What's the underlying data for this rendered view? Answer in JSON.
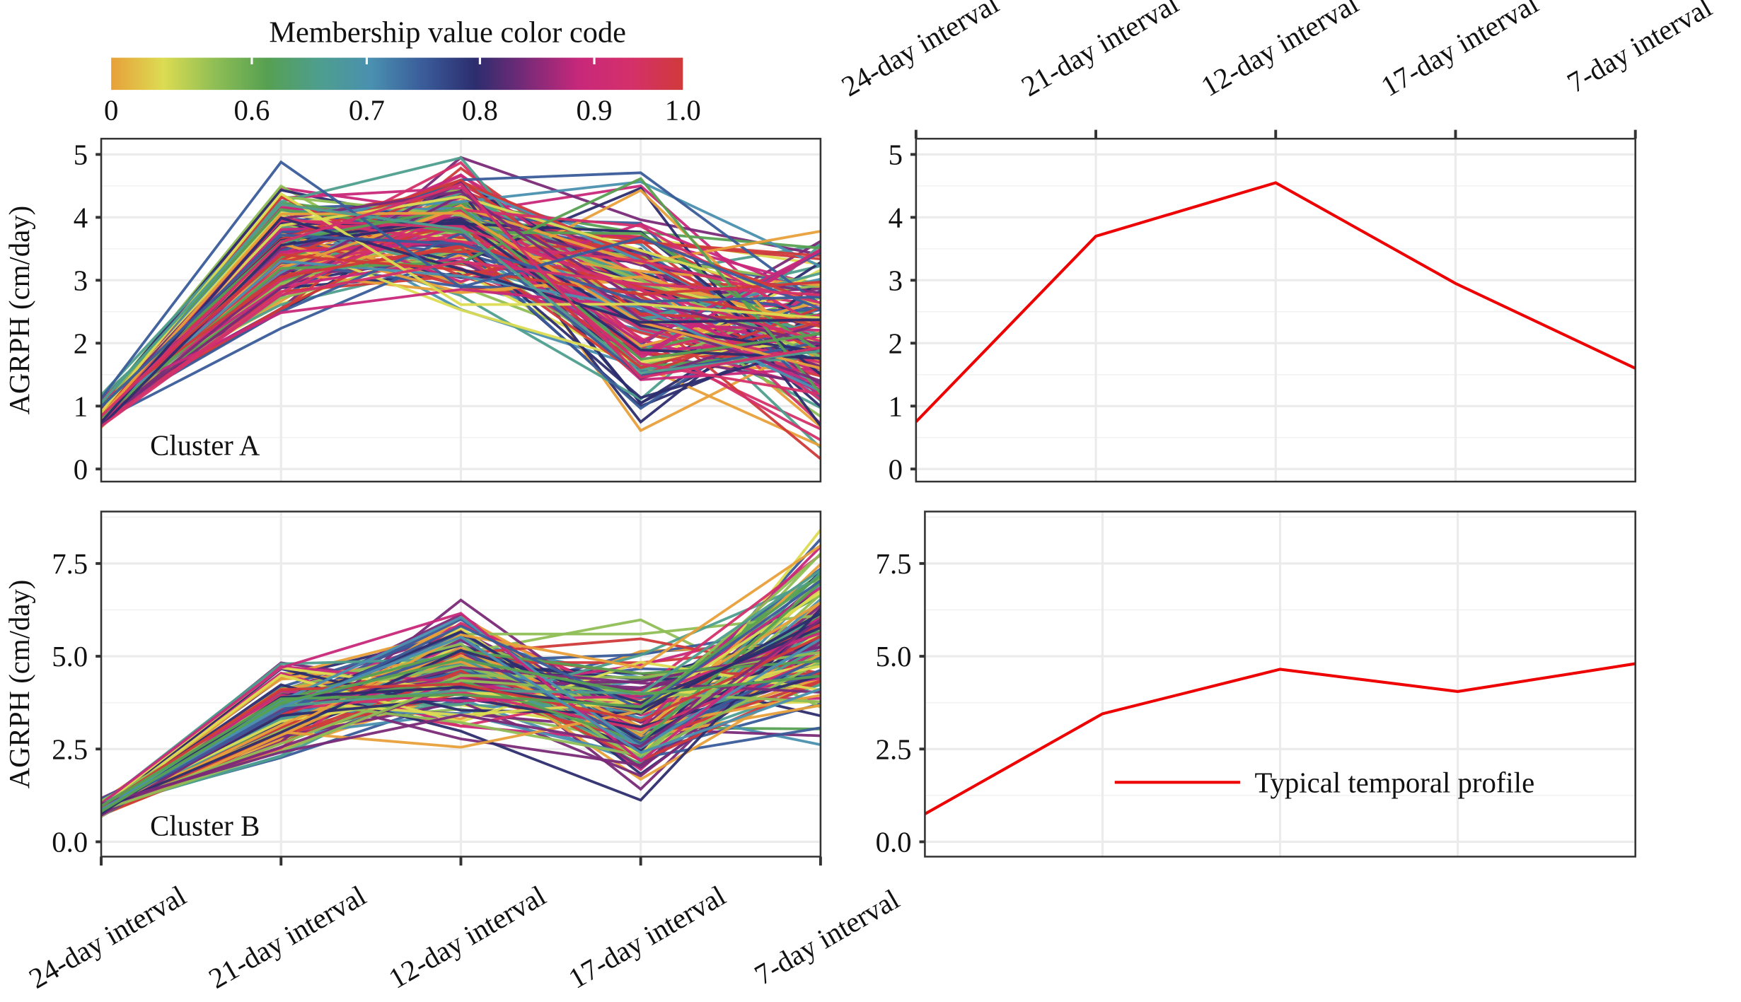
{
  "colorbar": {
    "title": "Membership value color code",
    "tick_labels": [
      "0",
      "0.6",
      "0.7",
      "0.8",
      "0.9",
      "1.0"
    ],
    "colors": [
      "#E8A03A",
      "#DCDC52",
      "#8FBE55",
      "#56A052",
      "#4E9E8E",
      "#4A90B0",
      "#3A5C9A",
      "#2C2D6E",
      "#7A2A78",
      "#C8287A",
      "#D4306A",
      "#D03A3A"
    ]
  },
  "chart_data": [
    {
      "type": "line",
      "panel": "Cluster A members",
      "label": "Cluster A",
      "ylabel": "AGRPH (cm/day)",
      "categories": [
        "24-day interval",
        "21-day interval",
        "12-day interval",
        "17-day interval",
        "7-day interval"
      ],
      "ylim": [
        -0.2,
        5.25
      ],
      "yticks": [
        "0",
        "1",
        "2",
        "3",
        "4",
        "5"
      ],
      "ytick_values": [
        0,
        1,
        2,
        3,
        4,
        5
      ],
      "member_value_ranges": [
        [
          0.6,
          1.2
        ],
        [
          2.1,
          4.95
        ],
        [
          2.5,
          5.0
        ],
        [
          0.45,
          4.9
        ],
        [
          0.15,
          4.0
        ]
      ],
      "member_count_approx": 160
    },
    {
      "type": "line",
      "panel": "Cluster A typical profile",
      "categories": [
        "24-day interval",
        "21-day interval",
        "12-day interval",
        "17-day interval",
        "7-day interval"
      ],
      "ylim": [
        -0.2,
        5.25
      ],
      "yticks": [
        "0",
        "1",
        "2",
        "3",
        "4",
        "5"
      ],
      "ytick_values": [
        0,
        1,
        2,
        3,
        4,
        5
      ],
      "series": [
        {
          "name": "Typical temporal profile",
          "values": [
            0.75,
            3.7,
            4.55,
            2.95,
            1.6
          ],
          "color": "#EE0000"
        }
      ]
    },
    {
      "type": "line",
      "panel": "Cluster B members",
      "label": "Cluster B",
      "ylabel": "AGRPH (cm/day)",
      "categories": [
        "24-day interval",
        "21-day interval",
        "12-day interval",
        "17-day interval",
        "7-day interval"
      ],
      "ylim": [
        -0.4,
        8.9
      ],
      "yticks": [
        "0.0",
        "2.5",
        "5.0",
        "7.5"
      ],
      "ytick_values": [
        0,
        2.5,
        5,
        7.5
      ],
      "member_value_ranges": [
        [
          0.6,
          1.2
        ],
        [
          2.1,
          5.0
        ],
        [
          2.5,
          6.6
        ],
        [
          0.8,
          6.0
        ],
        [
          2.6,
          8.5
        ]
      ],
      "member_count_approx": 140
    },
    {
      "type": "line",
      "panel": "Cluster B typical profile",
      "categories": [
        "24-day interval",
        "21-day interval",
        "12-day interval",
        "17-day interval",
        "7-day interval"
      ],
      "ylim": [
        -0.4,
        8.9
      ],
      "yticks": [
        "0.0",
        "2.5",
        "5.0",
        "7.5"
      ],
      "ytick_values": [
        0,
        2.5,
        5,
        7.5
      ],
      "series": [
        {
          "name": "Typical temporal profile",
          "values": [
            0.75,
            3.45,
            4.65,
            4.05,
            4.8
          ],
          "color": "#EE0000"
        }
      ],
      "legend": {
        "label": "Typical temporal profile",
        "placement": "bottom-right"
      }
    }
  ]
}
